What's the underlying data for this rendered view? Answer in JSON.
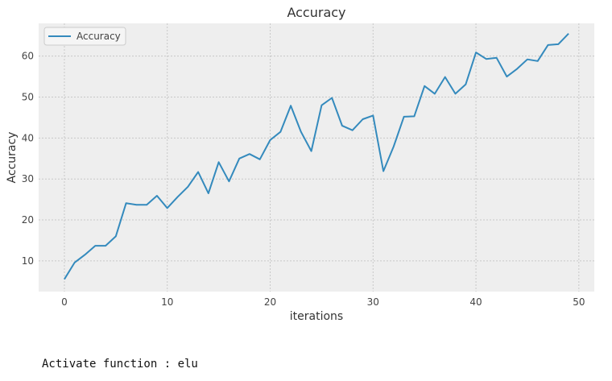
{
  "chart_data": {
    "type": "line",
    "title": "Accuracy",
    "xlabel": "iterations",
    "ylabel": "Accuracy",
    "xlim": [
      -2.5,
      51.5
    ],
    "ylim": [
      2.5,
      68
    ],
    "xticks": [
      0,
      10,
      20,
      30,
      40,
      50
    ],
    "yticks": [
      10,
      20,
      30,
      40,
      50,
      60
    ],
    "grid": true,
    "legend_position": "top-left",
    "series": [
      {
        "name": "Accuracy",
        "color": "#348ABD",
        "x": [
          0,
          1,
          2,
          3,
          4,
          5,
          6,
          7,
          8,
          9,
          10,
          11,
          12,
          13,
          14,
          15,
          16,
          17,
          18,
          19,
          20,
          21,
          22,
          23,
          24,
          25,
          26,
          27,
          28,
          29,
          30,
          31,
          32,
          33,
          34,
          35,
          36,
          37,
          38,
          39,
          40,
          41,
          42,
          43,
          44,
          45,
          46,
          47,
          48,
          49
        ],
        "y": [
          5.5,
          9.6,
          11.5,
          13.7,
          13.7,
          16.0,
          24.1,
          23.7,
          23.7,
          25.9,
          22.9,
          25.6,
          28.1,
          31.7,
          26.5,
          34.1,
          29.4,
          35.0,
          36.1,
          34.8,
          39.5,
          41.5,
          47.9,
          41.5,
          36.8,
          48.0,
          49.8,
          43.0,
          41.9,
          44.6,
          45.5,
          31.9,
          37.9,
          45.2,
          45.3,
          52.7,
          50.8,
          54.9,
          50.8,
          53.1,
          60.9,
          59.3,
          59.6,
          55.0,
          56.9,
          59.2,
          58.8,
          62.7,
          62.9,
          65.5
        ]
      }
    ]
  },
  "output": {
    "text": "Activate function : elu"
  },
  "colors": {
    "plot_background": "#EEEEEE",
    "grid": "#C8C8C8",
    "line": "#348ABD"
  }
}
